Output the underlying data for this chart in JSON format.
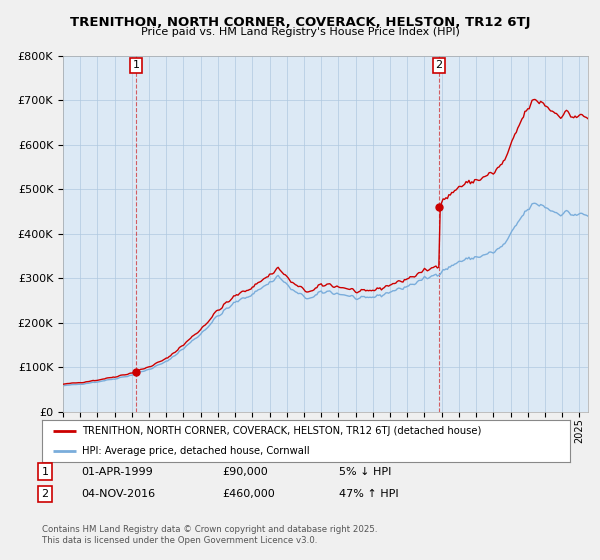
{
  "title": "TRENITHON, NORTH CORNER, COVERACK, HELSTON, TR12 6TJ",
  "subtitle": "Price paid vs. HM Land Registry's House Price Index (HPI)",
  "yticks": [
    0,
    100000,
    200000,
    300000,
    400000,
    500000,
    600000,
    700000,
    800000
  ],
  "ylim": [
    0,
    800000
  ],
  "sale1_year": 1999.25,
  "sale1_price": 90000,
  "sale1_desc": "01-APR-1999",
  "sale1_pct": "5% ↓ HPI",
  "sale2_year": 2016.84,
  "sale2_price": 460000,
  "sale2_desc": "04-NOV-2016",
  "sale2_pct": "47% ↑ HPI",
  "legend_line1": "TRENITHON, NORTH CORNER, COVERACK, HELSTON, TR12 6TJ (detached house)",
  "legend_line2": "HPI: Average price, detached house, Cornwall",
  "footer": "Contains HM Land Registry data © Crown copyright and database right 2025.\nThis data is licensed under the Open Government Licence v3.0.",
  "hpi_color": "#7aaddb",
  "price_color": "#cc0000",
  "bg_color": "#dce9f5",
  "plot_bg": "#dce9f5",
  "grid_color": "#b0c8e0",
  "xmin": 1995.0,
  "xmax": 2025.5
}
